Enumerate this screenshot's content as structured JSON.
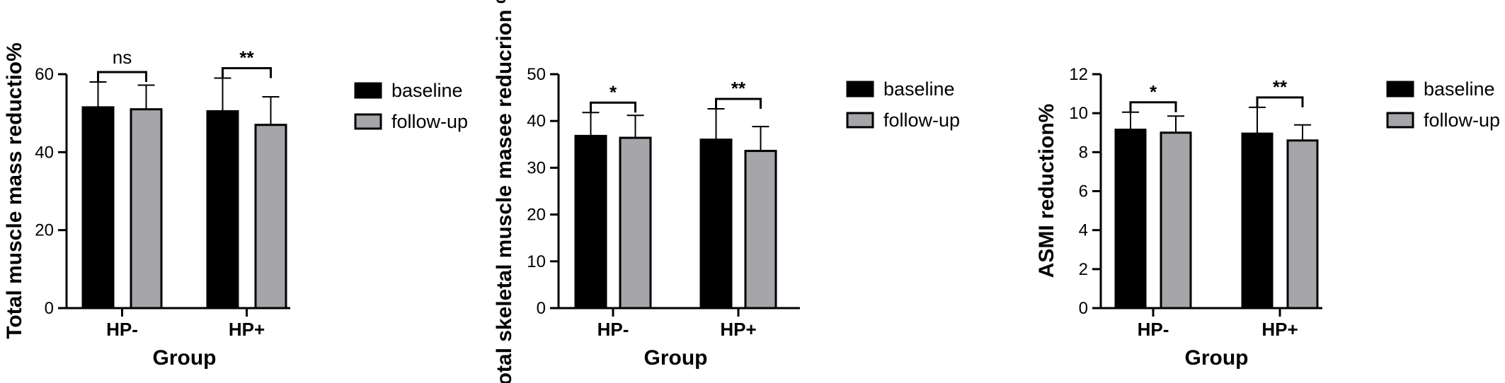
{
  "colors": {
    "baseline": "#000000",
    "follow_up": "#a6a6aa",
    "outline": "#000000"
  },
  "chart_data": [
    {
      "type": "bar",
      "xlabel": "Group",
      "ylabel": "Total muscle mass reductio%",
      "categories": [
        "HP-",
        "HP+"
      ],
      "ylim": [
        0,
        60
      ],
      "yticks": [
        0,
        20,
        40,
        60
      ],
      "legend_position": "right",
      "series": [
        {
          "name": "baseline",
          "values": [
            51.5,
            50.5
          ],
          "errors": [
            6.5,
            8.5
          ]
        },
        {
          "name": "follow-up",
          "values": [
            51.0,
            47.0
          ],
          "errors": [
            6.2,
            7.2
          ]
        }
      ],
      "significance": [
        "ns",
        "**"
      ]
    },
    {
      "type": "bar",
      "xlabel": "Group",
      "ylabel": "Total skeletal muscle masee reducrion %",
      "categories": [
        "HP-",
        "HP+"
      ],
      "ylim": [
        0,
        50
      ],
      "yticks": [
        0,
        10,
        20,
        30,
        40,
        50
      ],
      "legend_position": "right",
      "series": [
        {
          "name": "baseline",
          "values": [
            36.8,
            36.0
          ],
          "errors": [
            5.0,
            6.6
          ]
        },
        {
          "name": "follow-up",
          "values": [
            36.4,
            33.6
          ],
          "errors": [
            4.8,
            5.2
          ]
        }
      ],
      "significance": [
        "*",
        "**"
      ]
    },
    {
      "type": "bar",
      "xlabel": "Group",
      "ylabel": "ASMI reduction%",
      "categories": [
        "HP-",
        "HP+"
      ],
      "ylim": [
        0,
        12
      ],
      "yticks": [
        0,
        2,
        4,
        6,
        8,
        10,
        12
      ],
      "legend_position": "right",
      "series": [
        {
          "name": "baseline",
          "values": [
            9.15,
            8.95
          ],
          "errors": [
            0.9,
            1.35
          ]
        },
        {
          "name": "follow-up",
          "values": [
            9.0,
            8.6
          ],
          "errors": [
            0.85,
            0.8
          ]
        }
      ],
      "significance": [
        "*",
        "**"
      ]
    }
  ]
}
